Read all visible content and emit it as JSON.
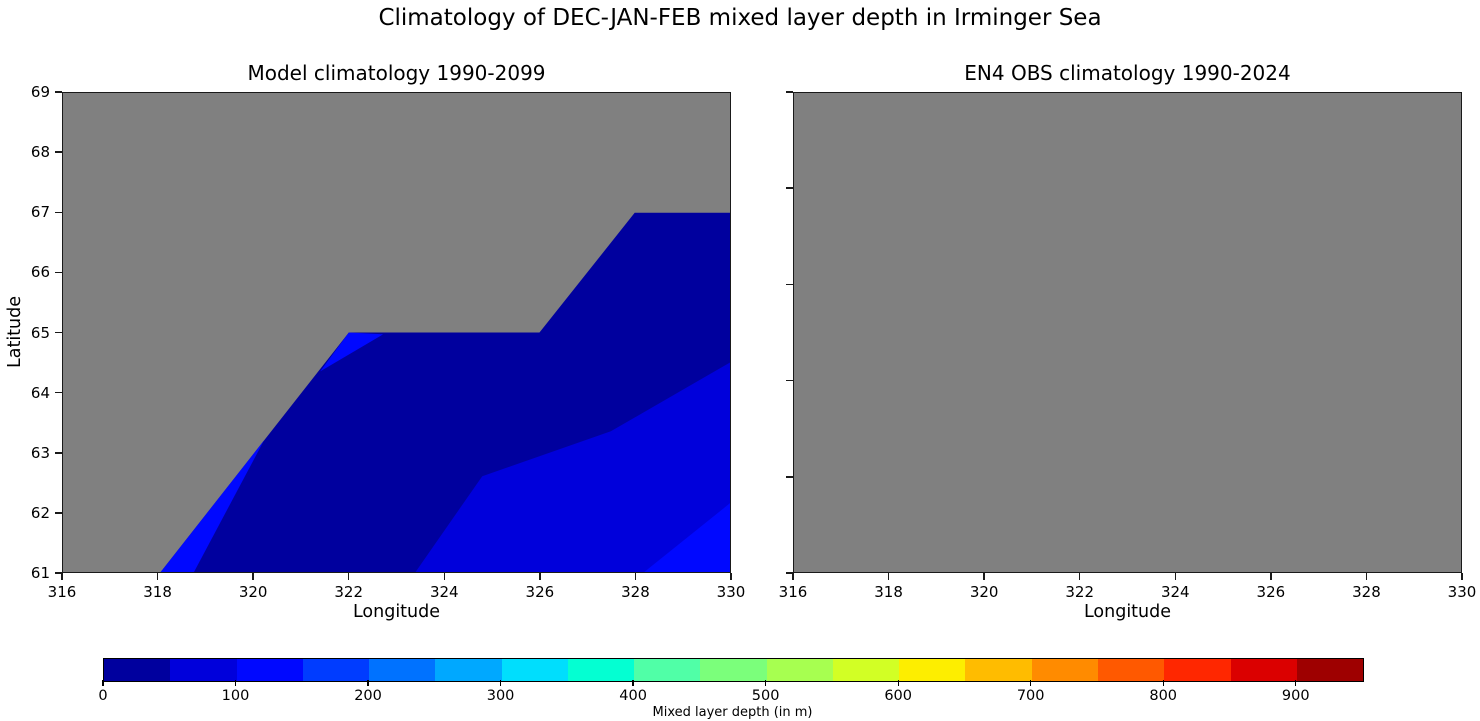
{
  "figure": {
    "suptitle": "Climatology of DEC-JAN-FEB mixed layer depth in Irminger Sea",
    "background_color": "#ffffff",
    "land_mask_color": "#808080",
    "spine_color": "#1a1a1a"
  },
  "chart_data": [
    {
      "type": "heatmap",
      "subtype": "filled-contour-map",
      "title": "Model climatology 1990-2099",
      "xlabel": "Longitude",
      "ylabel": "Latitude",
      "xlim": [
        316,
        330
      ],
      "ylim": [
        61,
        69
      ],
      "xticks": [
        316,
        318,
        320,
        322,
        324,
        326,
        328,
        330
      ],
      "yticks": [
        61,
        62,
        63,
        64,
        65,
        66,
        67,
        68,
        69
      ],
      "grid": false,
      "background": "gray = land / masked (no data)",
      "regions": [
        {
          "band": "0-50 m",
          "color": "#00009e",
          "polygon": [
            [
              318.05,
              61
            ],
            [
              322,
              65
            ],
            [
              326,
              65
            ],
            [
              328,
              67
            ],
            [
              330,
              67
            ],
            [
              330,
              61
            ]
          ]
        },
        {
          "band": "50-100 m",
          "color": "#0000db",
          "polygon": [
            [
              323.4,
              61
            ],
            [
              324.8,
              62.6
            ],
            [
              327.5,
              63.35
            ],
            [
              330,
              64.5
            ],
            [
              330,
              61
            ]
          ]
        },
        {
          "band": "100-150 m",
          "color": "#0008ff",
          "polygon": [
            [
              328.2,
              61
            ],
            [
              330,
              62.15
            ],
            [
              330,
              61
            ]
          ]
        },
        {
          "band": "100-150 m",
          "color": "#0008ff",
          "polygon": [
            [
              318.05,
              61
            ],
            [
              318.75,
              61
            ],
            [
              320.22,
              63.2
            ]
          ]
        },
        {
          "band": "100-150 m",
          "color": "#0008ff",
          "polygon": [
            [
              321.4,
              64.35
            ],
            [
              322,
              65
            ],
            [
              322.72,
              64.97
            ]
          ]
        }
      ]
    },
    {
      "type": "heatmap",
      "subtype": "filled-contour-map",
      "title": "EN4 OBS climatology 1990-2024",
      "xlabel": "Longitude",
      "ylabel": "",
      "xlim": [
        316,
        330
      ],
      "ylim": [
        61,
        69
      ],
      "xticks": [
        316,
        318,
        320,
        322,
        324,
        326,
        328,
        330
      ],
      "yticks_unlabeled_count": 6,
      "grid": false,
      "background": "entirely gray (all data masked / no data shown)",
      "regions": []
    }
  ],
  "colorbar": {
    "label": "Mixed layer depth (in m)",
    "ticks": [
      0,
      100,
      200,
      300,
      400,
      500,
      600,
      700,
      800,
      900
    ],
    "vmin": 0,
    "vmax": 950,
    "level_step": 50,
    "colormap": "jet",
    "segment_colors": [
      "#00009e",
      "#0000db",
      "#0008ff",
      "#003cff",
      "#0072ff",
      "#00a8ff",
      "#00defd",
      "#04ffd2",
      "#50ffa7",
      "#7bff7b",
      "#a7ff50",
      "#d2ff25",
      "#fdee00",
      "#ffbc00",
      "#ff8b00",
      "#ff5900",
      "#ff2700",
      "#db0000",
      "#9e0000"
    ]
  }
}
